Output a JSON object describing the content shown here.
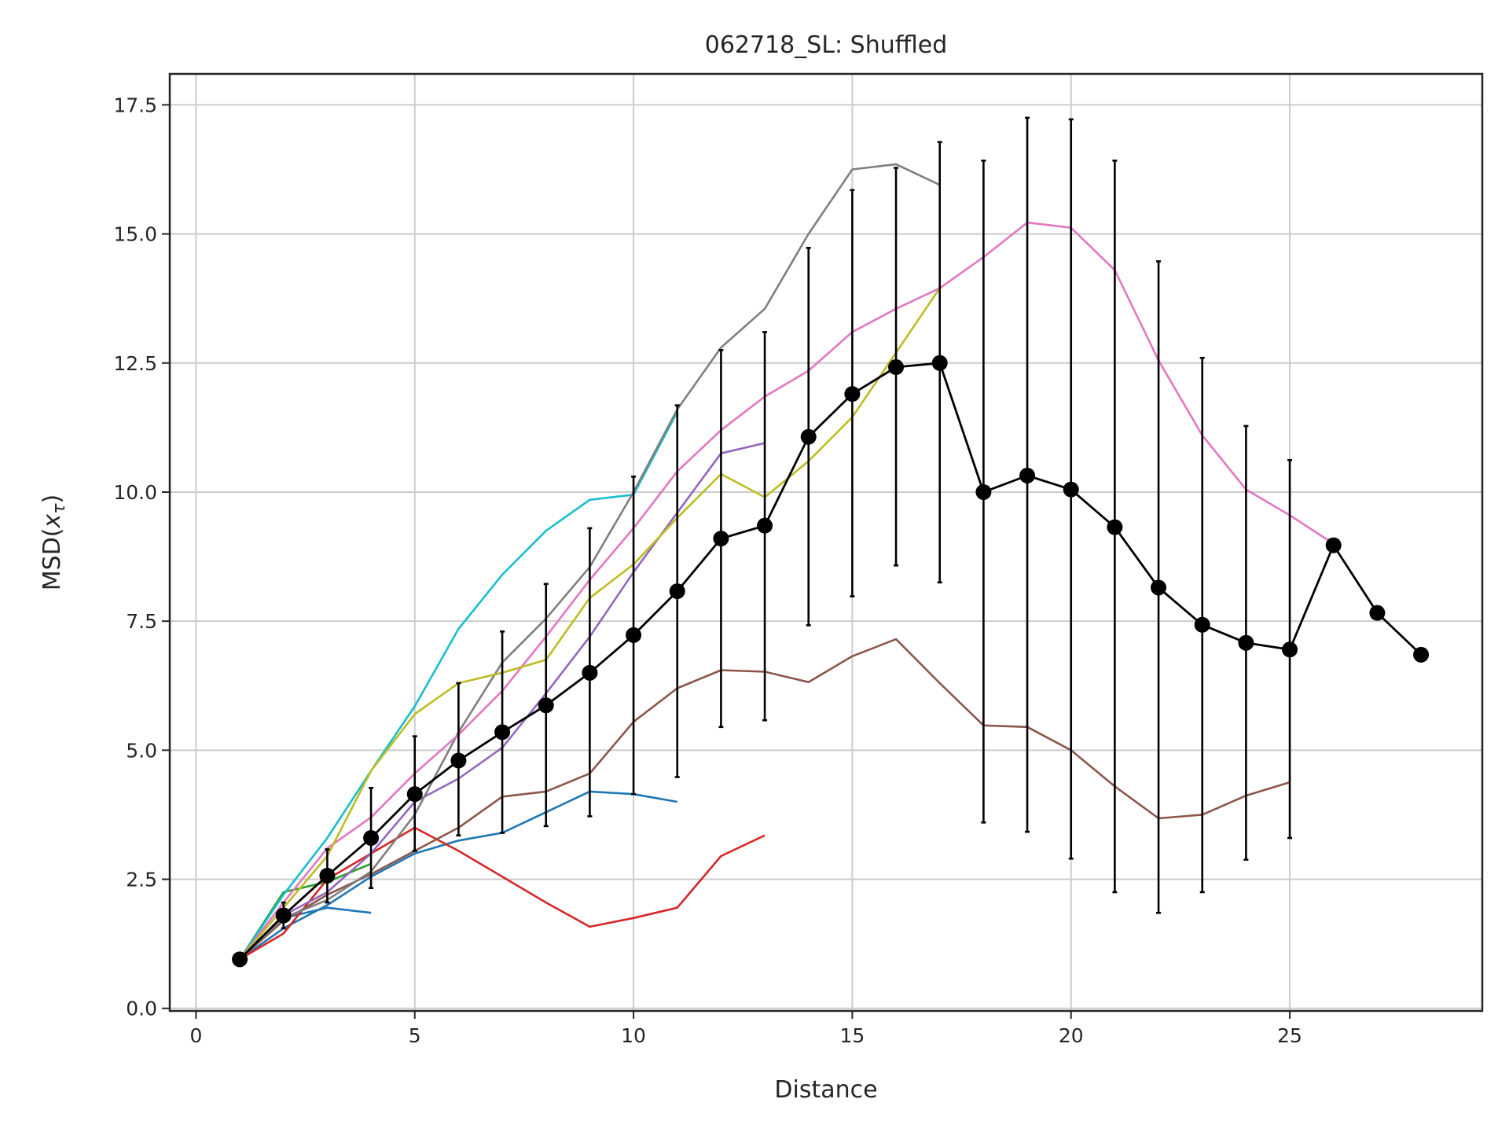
{
  "chart_data": {
    "type": "line",
    "title": "062718_SL: Shuffled",
    "xlabel": "Distance",
    "ylabel_base": "MSD(",
    "ylabel_var": "x",
    "ylabel_sub": "τ",
    "ylabel_close": ")",
    "xlim": [
      -0.6,
      29.4
    ],
    "ylim": [
      -0.05,
      18.1
    ],
    "xticks": [
      0,
      5,
      10,
      15,
      20,
      25
    ],
    "xtick_labels": [
      "0",
      "5",
      "10",
      "15",
      "20",
      "25"
    ],
    "yticks": [
      0,
      2.5,
      5,
      7.5,
      10,
      12.5,
      15,
      17.5
    ],
    "ytick_labels": [
      "0.0",
      "2.5",
      "5.0",
      "7.5",
      "10.0",
      "12.5",
      "15.0",
      "17.5"
    ],
    "grid": true,
    "series": [
      {
        "color": "#1f77b4",
        "x": [
          1,
          2,
          3,
          4
        ],
        "y": [
          0.95,
          1.75,
          1.95,
          1.85
        ]
      },
      {
        "color": "#2ca02c",
        "x": [
          1,
          2,
          3,
          4
        ],
        "y": [
          0.95,
          2.25,
          2.45,
          2.8
        ]
      },
      {
        "color": "#1f77b4",
        "x": [
          1,
          2,
          3,
          4,
          5,
          6,
          7,
          8,
          9,
          10,
          11
        ],
        "y": [
          0.95,
          1.55,
          2.0,
          2.55,
          3.0,
          3.25,
          3.4,
          3.8,
          4.2,
          4.15,
          4.0
        ]
      },
      {
        "color": "#d62728",
        "x": [
          1,
          2,
          3,
          4,
          5,
          6,
          7,
          8,
          9,
          10,
          11,
          12,
          13
        ],
        "y": [
          0.95,
          1.45,
          2.5,
          3.0,
          3.5,
          3.05,
          2.55,
          2.05,
          1.58,
          1.75,
          1.95,
          2.95,
          3.35
        ]
      },
      {
        "color": "#8c564b",
        "x": [
          1,
          2,
          3,
          4,
          5,
          6,
          7,
          8,
          9,
          10,
          11,
          12,
          13,
          14,
          15,
          16,
          17,
          18,
          19,
          20,
          21,
          22,
          23,
          24,
          25
        ],
        "y": [
          0.95,
          1.7,
          2.2,
          2.6,
          3.05,
          3.5,
          4.1,
          4.2,
          4.55,
          5.55,
          6.2,
          6.55,
          6.52,
          6.32,
          6.82,
          7.15,
          6.3,
          5.48,
          5.45,
          5.0,
          4.3,
          3.68,
          3.75,
          4.12,
          4.38
        ]
      },
      {
        "color": "#9467bd",
        "x": [
          1,
          2,
          3,
          4,
          5,
          6,
          7,
          8,
          9,
          10,
          11,
          12,
          13
        ],
        "y": [
          0.95,
          1.8,
          2.25,
          3.0,
          4.0,
          4.45,
          5.05,
          6.1,
          7.2,
          8.45,
          9.6,
          10.75,
          10.95
        ]
      },
      {
        "color": "#17becf",
        "x": [
          1,
          2,
          3,
          4,
          5,
          6,
          7,
          8,
          9,
          10,
          11
        ],
        "y": [
          0.95,
          2.2,
          3.3,
          4.6,
          5.85,
          7.35,
          8.4,
          9.25,
          9.85,
          9.95,
          11.55
        ]
      },
      {
        "color": "#7f7f7f",
        "x": [
          1,
          2,
          3,
          4,
          5,
          6,
          7,
          8,
          9,
          10,
          11,
          12,
          13,
          14,
          15,
          16,
          17
        ],
        "y": [
          0.95,
          1.75,
          2.1,
          2.65,
          3.75,
          5.35,
          6.7,
          7.55,
          8.55,
          10.0,
          11.6,
          12.8,
          13.55,
          15.0,
          16.25,
          16.35,
          15.95
        ]
      },
      {
        "color": "#e377c2",
        "x": [
          1,
          2,
          3,
          4,
          5,
          6,
          7,
          8,
          9,
          10,
          11,
          12,
          13,
          14,
          15,
          16,
          17,
          18,
          19,
          20,
          21,
          22,
          23,
          24,
          25,
          26
        ],
        "y": [
          0.95,
          2.05,
          3.1,
          3.7,
          4.55,
          5.3,
          6.15,
          7.2,
          8.3,
          9.3,
          10.4,
          11.2,
          11.85,
          12.35,
          13.1,
          13.55,
          13.95,
          14.55,
          15.22,
          15.12,
          14.3,
          12.55,
          11.1,
          10.05,
          9.55,
          9.0
        ]
      },
      {
        "color": "#bcbd22",
        "x": [
          1,
          2,
          3,
          4,
          5,
          6,
          7,
          8,
          9,
          10,
          11,
          12,
          13,
          14,
          15,
          16,
          17
        ],
        "y": [
          0.95,
          1.95,
          2.95,
          4.6,
          5.7,
          6.3,
          6.5,
          6.75,
          7.95,
          8.6,
          9.5,
          10.35,
          9.9,
          10.6,
          11.45,
          12.7,
          13.95
        ]
      }
    ],
    "mean_series": {
      "color": "#000000",
      "x": [
        1,
        2,
        3,
        4,
        5,
        6,
        7,
        8,
        9,
        10,
        11,
        12,
        13,
        14,
        15,
        16,
        17,
        18,
        19,
        20,
        21,
        22,
        23,
        24,
        25,
        26,
        27,
        28
      ],
      "y": [
        0.95,
        1.8,
        2.57,
        3.3,
        4.15,
        4.8,
        5.35,
        5.87,
        6.5,
        7.23,
        8.08,
        9.1,
        9.35,
        11.07,
        11.9,
        12.42,
        12.5,
        10.0,
        10.32,
        10.05,
        9.32,
        8.15,
        7.43,
        7.08,
        6.95,
        8.97,
        7.66,
        6.85
      ],
      "yerr_low": [
        null,
        1.55,
        2.05,
        2.33,
        3.05,
        3.35,
        3.4,
        3.53,
        3.72,
        4.15,
        4.48,
        5.45,
        5.58,
        7.42,
        7.98,
        8.58,
        8.25,
        3.6,
        3.42,
        2.9,
        2.25,
        1.85,
        2.25,
        2.88,
        3.3,
        null,
        null,
        null
      ],
      "yerr_high": [
        null,
        2.05,
        3.08,
        4.27,
        5.27,
        6.3,
        7.3,
        8.22,
        9.3,
        10.3,
        11.68,
        12.75,
        13.1,
        14.73,
        15.85,
        16.28,
        16.78,
        16.42,
        17.25,
        17.22,
        16.42,
        14.47,
        12.6,
        11.28,
        10.62,
        null,
        null,
        null
      ]
    }
  }
}
